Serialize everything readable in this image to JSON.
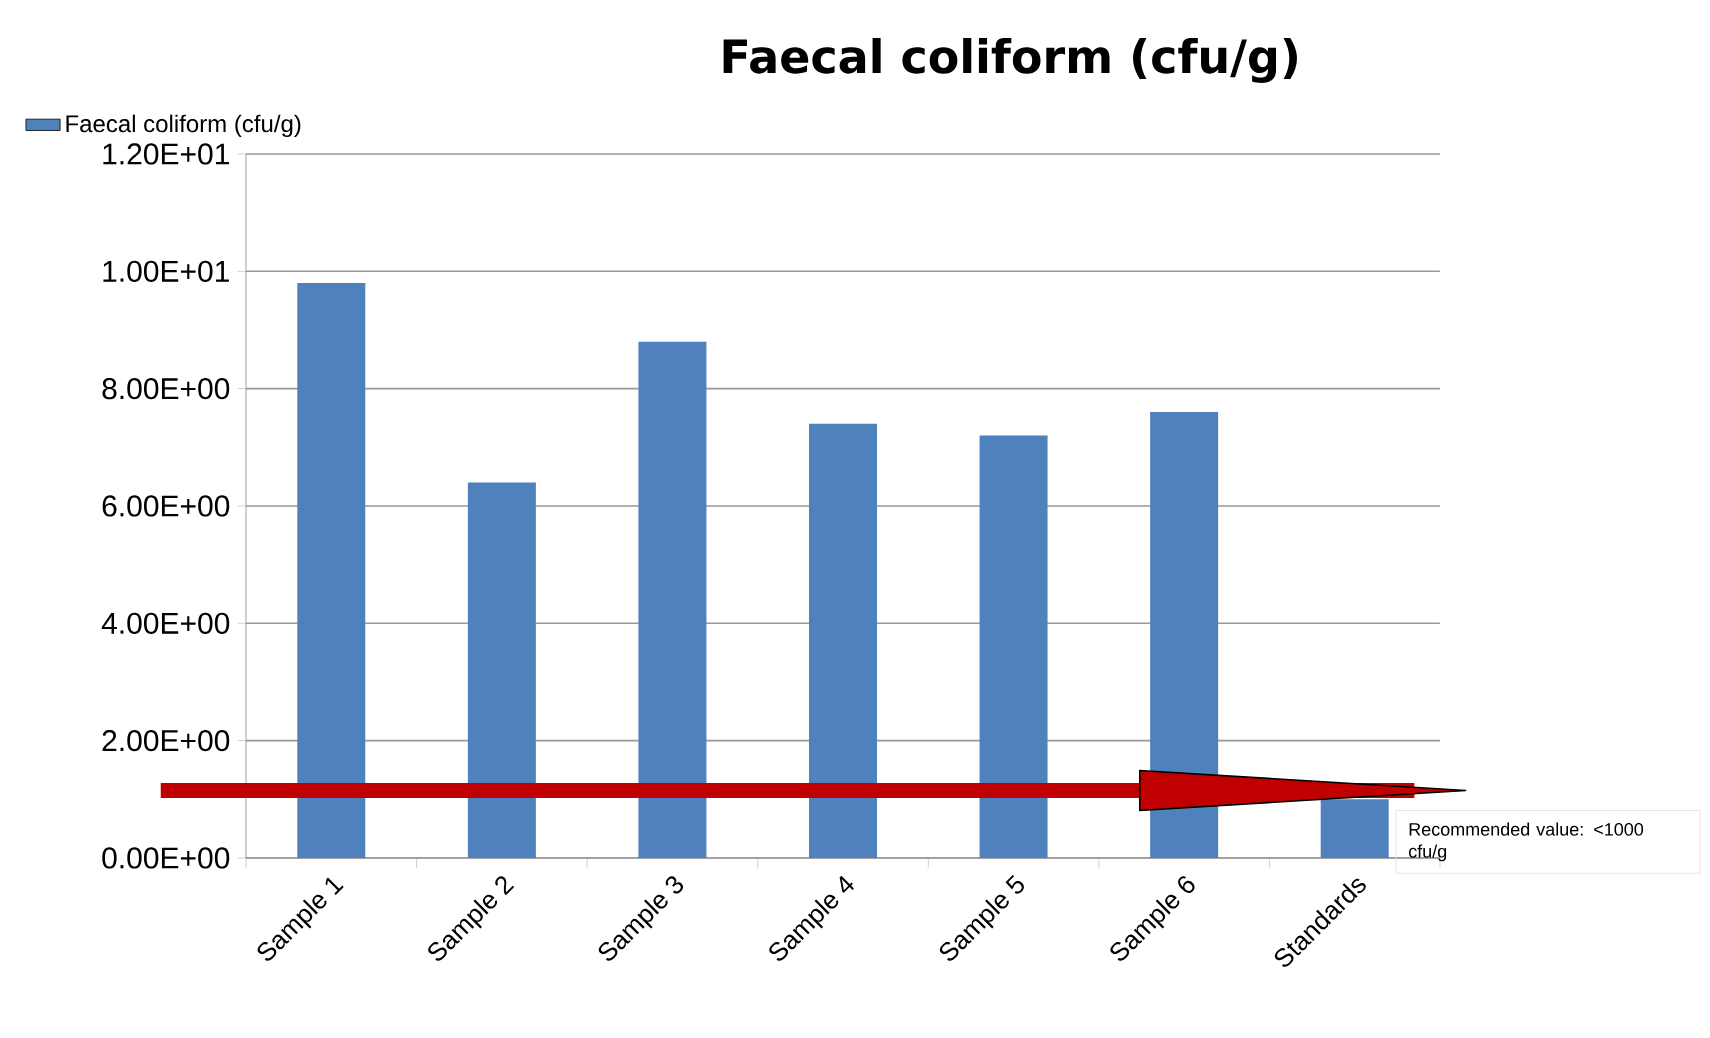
{
  "chart_data": {
    "type": "bar",
    "title": "Faecal coliform (cfu/g)",
    "categories": [
      "Sample 1",
      "Sample 2",
      "Sample 3",
      "Sample 4",
      "Sample 5",
      "Sample 6",
      "Standards"
    ],
    "series": [
      {
        "name": "Faecal coliform (cfu/g)",
        "color": "#4f81bd",
        "values": [
          9.8,
          6.4,
          8.8,
          7.4,
          7.2,
          7.6,
          1.0
        ]
      }
    ],
    "ylim": [
      0,
      12
    ],
    "yticks": [
      {
        "value": 0,
        "label": "0.00E+00"
      },
      {
        "value": 2,
        "label": "2.00E+00"
      },
      {
        "value": 4,
        "label": "4.00E+00"
      },
      {
        "value": 6,
        "label": "6.00E+00"
      },
      {
        "value": 8,
        "label": "8.00E+00"
      },
      {
        "value": 10,
        "label": "1.00E+01"
      },
      {
        "value": 12,
        "label": "1.20E+01"
      }
    ],
    "ref_lines": [
      {
        "axis": "y",
        "value": 1.15,
        "label": "Recommended value: <1000 cfu/g",
        "color": "#c00000"
      }
    ],
    "grid": "y",
    "legend": "top left"
  }
}
